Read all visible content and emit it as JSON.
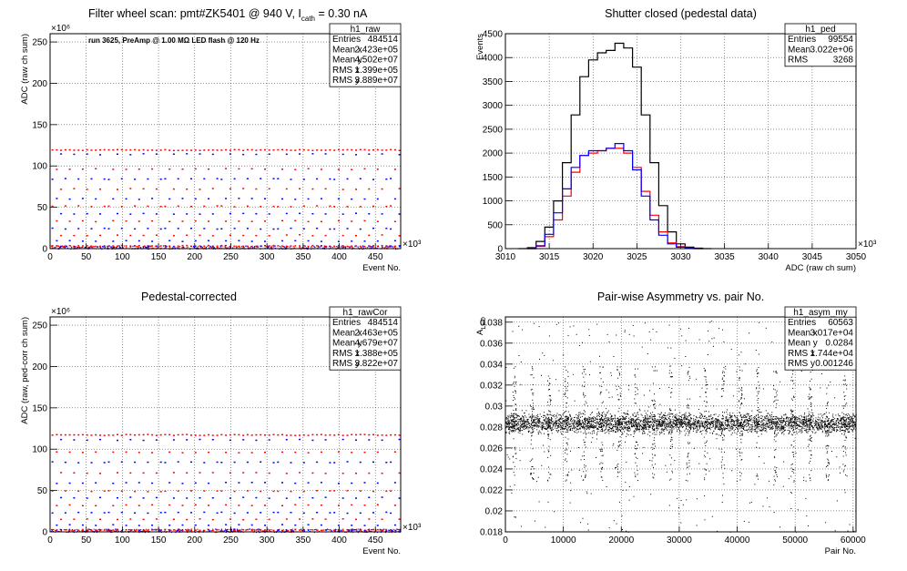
{
  "chart_data": [
    {
      "id": "raw",
      "type": "scatter",
      "title": "Filter wheel scan: pmt#ZK5401 @   940 V, I",
      "title_sub": "cath",
      "title_tail": " = 0.30 nA",
      "annotation": "run 3625, PreAmp @ 1.00 MΩ LED flash @  120 Hz",
      "xlabel": "Event No.",
      "ylabel": "ADC (raw ch sum)",
      "x_exponent": "×10³",
      "y_exponent": "×10⁶",
      "xlim": [
        0,
        485
      ],
      "ylim": [
        0,
        260
      ],
      "xticks": [
        "0",
        "50",
        "100",
        "150",
        "200",
        "250",
        "300",
        "350",
        "400",
        "450"
      ],
      "yticks": [
        "0",
        "50",
        "100",
        "150",
        "200",
        "250"
      ],
      "grid": true,
      "stats": {
        "name": "h1_raw",
        "rows": [
          {
            "label": "Entries",
            "value": "484514"
          },
          {
            "label": "Mean x",
            "value": "2.423e+05"
          },
          {
            "label": "Mean y",
            "value": "4.502e+07"
          },
          {
            "label": "RMS x",
            "value": "1.399e+05"
          },
          {
            "label": "RMS y",
            "value": "3.889e+07"
          }
        ]
      },
      "levels": [
        120,
        115,
        97,
        85,
        73,
        61,
        52,
        43,
        34,
        25,
        17,
        10,
        4
      ],
      "period": 24
    },
    {
      "id": "ped",
      "type": "line",
      "title": "Shutter closed (pedestal data)",
      "xlabel": "ADC (raw ch sum)",
      "ylabel": "Events",
      "x_exponent": "×10³",
      "xlim": [
        3010,
        3050
      ],
      "ylim": [
        0,
        4500
      ],
      "xticks": [
        "3010",
        "3015",
        "3020",
        "3025",
        "3030",
        "3035",
        "3040",
        "3045",
        "3050"
      ],
      "yticks": [
        "0",
        "500",
        "1000",
        "1500",
        "2000",
        "2500",
        "3000",
        "3500",
        "4000",
        "4500"
      ],
      "grid": true,
      "stats": {
        "name": "h1_ped",
        "rows": [
          {
            "label": "Entries",
            "value": "99554"
          },
          {
            "label": "Mean",
            "value": "3.022e+06"
          },
          {
            "label": "RMS",
            "value": "3268"
          }
        ]
      },
      "series": [
        {
          "color": "#000000",
          "x": [
            3012,
            3013,
            3014,
            3015,
            3016,
            3017,
            3018,
            3019,
            3020,
            3021,
            3022,
            3023,
            3024,
            3025,
            3026,
            3027,
            3028,
            3029,
            3030,
            3031,
            3032,
            3033
          ],
          "values": [
            0,
            20,
            150,
            450,
            1000,
            1800,
            2800,
            3600,
            3950,
            4100,
            4150,
            4300,
            4200,
            3800,
            2800,
            1800,
            900,
            350,
            100,
            30,
            10,
            0
          ]
        },
        {
          "color": "#ff0000",
          "x": [
            3013,
            3014,
            3015,
            3016,
            3017,
            3018,
            3019,
            3020,
            3021,
            3022,
            3023,
            3024,
            3025,
            3026,
            3027,
            3028,
            3029,
            3030,
            3031,
            3032
          ],
          "values": [
            0,
            50,
            250,
            600,
            1100,
            1600,
            1950,
            2000,
            2050,
            2100,
            2100,
            2000,
            1700,
            1200,
            700,
            350,
            120,
            40,
            10,
            0
          ]
        },
        {
          "color": "#0000ff",
          "x": [
            3013,
            3014,
            3015,
            3016,
            3017,
            3018,
            3019,
            3020,
            3021,
            3022,
            3023,
            3024,
            3025,
            3026,
            3027,
            3028,
            3029,
            3030,
            3031,
            3032
          ],
          "values": [
            0,
            60,
            300,
            750,
            1250,
            1700,
            1950,
            2050,
            2050,
            2100,
            2200,
            2050,
            1650,
            1100,
            600,
            280,
            100,
            30,
            10,
            0
          ]
        }
      ]
    },
    {
      "id": "rawCor",
      "type": "scatter",
      "title": "Pedestal-corrected",
      "xlabel": "Event No.",
      "ylabel": "ADC (raw, ped-corr ch sum)",
      "x_exponent": "×10³",
      "y_exponent": "×10⁶",
      "xlim": [
        0,
        485
      ],
      "ylim": [
        0,
        260
      ],
      "xticks": [
        "0",
        "50",
        "100",
        "150",
        "200",
        "250",
        "300",
        "350",
        "400",
        "450"
      ],
      "yticks": [
        "0",
        "50",
        "100",
        "150",
        "200",
        "250"
      ],
      "grid": true,
      "stats": {
        "name": "h1_rawCor",
        "rows": [
          {
            "label": "Entries",
            "value": "484514"
          },
          {
            "label": "Mean x",
            "value": "2.463e+05"
          },
          {
            "label": "Mean y",
            "value": "4.679e+07"
          },
          {
            "label": "RMS x",
            "value": "1.388e+05"
          },
          {
            "label": "RMS y",
            "value": "3.822e+07"
          }
        ]
      },
      "levels": [
        118,
        112,
        97,
        85,
        72,
        60,
        50,
        42,
        33,
        24,
        16,
        9,
        3
      ],
      "period": 24
    },
    {
      "id": "asym",
      "type": "scatter",
      "title": "Pair-wise Asymmetry vs. pair No.",
      "xlabel": "Pair No.",
      "ylabel": "A",
      "ylabel_sub": "LED",
      "xlim": [
        0,
        60500
      ],
      "ylim": [
        0.018,
        0.0385
      ],
      "xticks": [
        "0",
        "10000",
        "20000",
        "30000",
        "40000",
        "50000",
        "60000"
      ],
      "yticks": [
        "0.018",
        "0.02",
        "0.022",
        "0.024",
        "0.026",
        "0.028",
        "0.03",
        "0.032",
        "0.034",
        "0.036",
        "0.038"
      ],
      "grid": true,
      "stats": {
        "name": "h1_asym_my",
        "rows": [
          {
            "label": "Entries",
            "value": "60563"
          },
          {
            "label": "Mean x",
            "value": "3.017e+04"
          },
          {
            "label": "Mean y",
            "value": "0.0284"
          },
          {
            "label": "RMS x",
            "value": "1.744e+04"
          },
          {
            "label": "RMS y",
            "value": "0.001246"
          }
        ]
      },
      "center": 0.0284,
      "period": 3000
    }
  ]
}
